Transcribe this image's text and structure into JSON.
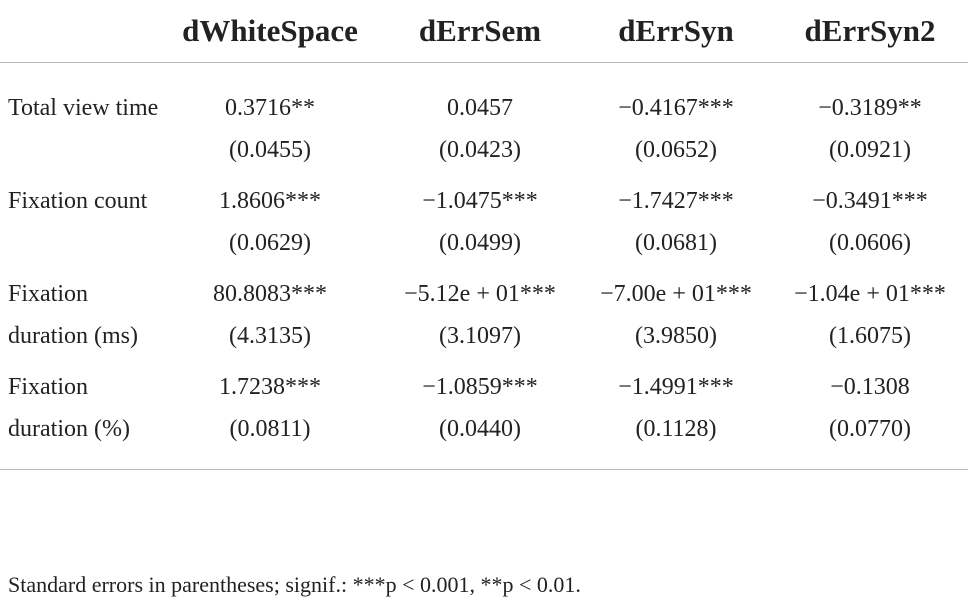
{
  "table": {
    "columns": [
      "dWhiteSpace",
      "dErrSem",
      "dErrSyn",
      "dErrSyn2"
    ],
    "rows": [
      {
        "label": "Total view time",
        "cells": [
          {
            "estimate": "0.3716**",
            "se": "(0.0455)"
          },
          {
            "estimate": "0.0457",
            "se": "(0.0423)"
          },
          {
            "estimate": "−0.4167***",
            "se": "(0.0652)"
          },
          {
            "estimate": "−0.3189**",
            "se": "(0.0921)"
          }
        ]
      },
      {
        "label": "Fixation count",
        "cells": [
          {
            "estimate": "1.8606***",
            "se": "(0.0629)"
          },
          {
            "estimate": "−1.0475***",
            "se": "(0.0499)"
          },
          {
            "estimate": "−1.7427***",
            "se": "(0.0681)"
          },
          {
            "estimate": "−0.3491***",
            "se": "(0.0606)"
          }
        ]
      },
      {
        "label": "Fixation duration (ms)",
        "cells": [
          {
            "estimate": "80.8083***",
            "se": "(4.3135)"
          },
          {
            "estimate": "−5.12e + 01***",
            "se": "(3.1097)"
          },
          {
            "estimate": "−7.00e + 01***",
            "se": "(3.9850)"
          },
          {
            "estimate": "−1.04e + 01***",
            "se": "(1.6075)"
          }
        ]
      },
      {
        "label": "Fixation duration (%)",
        "cells": [
          {
            "estimate": "1.7238***",
            "se": "(0.0811)"
          },
          {
            "estimate": "−1.0859***",
            "se": "(0.0440)"
          },
          {
            "estimate": "−1.4991***",
            "se": "(0.1128)"
          },
          {
            "estimate": "−0.1308",
            "se": "(0.0770)"
          }
        ]
      }
    ],
    "footnote": "Standard errors in parentheses; signif.: ***p < 0.001, **p < 0.01."
  }
}
